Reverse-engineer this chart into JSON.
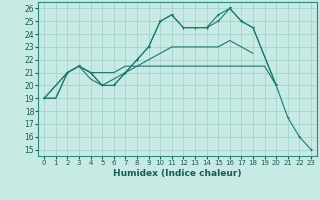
{
  "xlabel": "Humidex (Indice chaleur)",
  "bg_color": "#c8eae4",
  "line_color": "#1a7a6e",
  "grid_color": "#a0cec8",
  "xlim": [
    -0.5,
    23.5
  ],
  "ylim": [
    14.5,
    26.5
  ],
  "xticks": [
    0,
    1,
    2,
    3,
    4,
    5,
    6,
    7,
    8,
    9,
    10,
    11,
    12,
    13,
    14,
    15,
    16,
    17,
    18,
    19,
    20,
    21,
    22,
    23
  ],
  "yticks": [
    15,
    16,
    17,
    18,
    19,
    20,
    21,
    22,
    23,
    24,
    25,
    26
  ],
  "line1_x": [
    0,
    1,
    2,
    3,
    4,
    5,
    6,
    7,
    8,
    9,
    10,
    11,
    12,
    13,
    14,
    15,
    16,
    17,
    18,
    19,
    20
  ],
  "line1_y": [
    19,
    19,
    21,
    21.5,
    21,
    21,
    21,
    21.5,
    21.5,
    21.5,
    21.5,
    21.5,
    21.5,
    21.5,
    21.5,
    21.5,
    21.5,
    21.5,
    21.5,
    21.5,
    20
  ],
  "line2_x": [
    0,
    1,
    2,
    3,
    4,
    5,
    6,
    7,
    8,
    9,
    10,
    11,
    12,
    13,
    14,
    15,
    16,
    17,
    18
  ],
  "line2_y": [
    19,
    19,
    21,
    21.5,
    20.5,
    20,
    20.5,
    21,
    21.5,
    22,
    22.5,
    23,
    23,
    23,
    23,
    23,
    23.5,
    23,
    22.5
  ],
  "line3_x": [
    0,
    2,
    3,
    4,
    5,
    6,
    7,
    8,
    9,
    10,
    11,
    12,
    13,
    14,
    15,
    16,
    17,
    18,
    20
  ],
  "line3_y": [
    19,
    21,
    21.5,
    21,
    20,
    20,
    21,
    22,
    23,
    25,
    25.5,
    24.5,
    24.5,
    24.5,
    25,
    26,
    25,
    24.5,
    20
  ],
  "line4_x": [
    0,
    2,
    3,
    4,
    5,
    6,
    7,
    8,
    9,
    10,
    11,
    12,
    13,
    14,
    15,
    16,
    17,
    18,
    20,
    21,
    22,
    23
  ],
  "line4_y": [
    19,
    21,
    21.5,
    21,
    20,
    20,
    21,
    22,
    23,
    25,
    25.5,
    24.5,
    24.5,
    24.5,
    25.5,
    26,
    25,
    24.5,
    20,
    17.5,
    16,
    15
  ]
}
